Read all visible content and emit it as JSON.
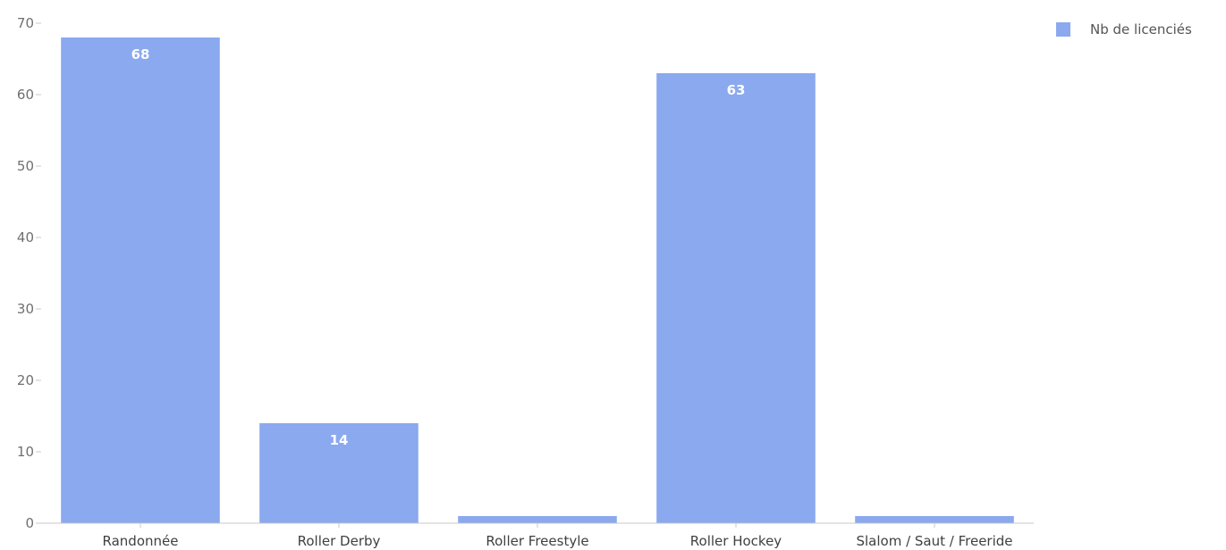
{
  "chart_data": {
    "type": "bar",
    "categories": [
      "Randonnée",
      "Roller Derby",
      "Roller Freestyle",
      "Roller Hockey",
      "Slalom / Saut / Freeride"
    ],
    "series": [
      {
        "name": "Nb de licenciés",
        "values": [
          68,
          14,
          1,
          63,
          1
        ]
      }
    ],
    "data_labels": [
      "68",
      "14",
      "",
      "63",
      ""
    ],
    "title": "",
    "xlabel": "",
    "ylabel": "",
    "ylim": [
      0,
      70
    ],
    "yticks": [
      0,
      10,
      20,
      30,
      40,
      50,
      60,
      70
    ],
    "grid": false,
    "legend_position": "top-right",
    "bar_color": "#8aa9ef",
    "axis_color": "#c8c8c8"
  }
}
